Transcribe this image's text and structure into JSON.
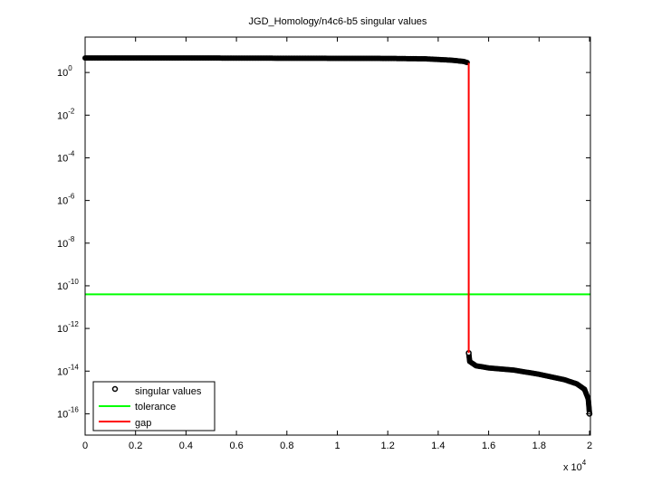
{
  "chart_data": {
    "type": "scatter",
    "title": "JGD_Homology/n4c6-b5 singular values",
    "xlabel": "",
    "ylabel": "",
    "x_multiplier_label": "x 10",
    "x_multiplier_exp": "4",
    "xlim": [
      0,
      20000
    ],
    "ylim_log10": [
      -17,
      1.66
    ],
    "yscale": "log",
    "grid": false,
    "legend_position": "bottom-left",
    "x_ticks": [
      "0",
      "0.2",
      "0.4",
      "0.6",
      "0.8",
      "1",
      "1.2",
      "1.4",
      "1.6",
      "1.8",
      "2"
    ],
    "y_tick_exponents": [
      "0",
      "-2",
      "-4",
      "-6",
      "-8",
      "-10",
      "-12",
      "-14",
      "-16"
    ],
    "series": [
      {
        "name": "singular values",
        "kind": "markers",
        "color": "#000000",
        "points_log10": [
          [
            0,
            0.68
          ],
          [
            4000,
            0.68
          ],
          [
            8000,
            0.67
          ],
          [
            12000,
            0.66
          ],
          [
            13500,
            0.64
          ],
          [
            14500,
            0.58
          ],
          [
            15000,
            0.52
          ],
          [
            15200,
            0.45
          ],
          [
            15210,
            -13.15
          ],
          [
            15250,
            -13.55
          ],
          [
            15500,
            -13.75
          ],
          [
            16000,
            -13.85
          ],
          [
            17000,
            -13.95
          ],
          [
            18000,
            -14.15
          ],
          [
            19000,
            -14.4
          ],
          [
            19500,
            -14.6
          ],
          [
            19800,
            -14.85
          ],
          [
            19950,
            -15.3
          ],
          [
            20000,
            -16.0
          ]
        ]
      },
      {
        "name": "tolerance",
        "kind": "hline",
        "color": "#00ff00",
        "y_log10": -10.4
      },
      {
        "name": "gap",
        "kind": "vline",
        "color": "#ff0000",
        "x": 15210,
        "y_log10_range": [
          -13.15,
          0.45
        ]
      }
    ]
  }
}
